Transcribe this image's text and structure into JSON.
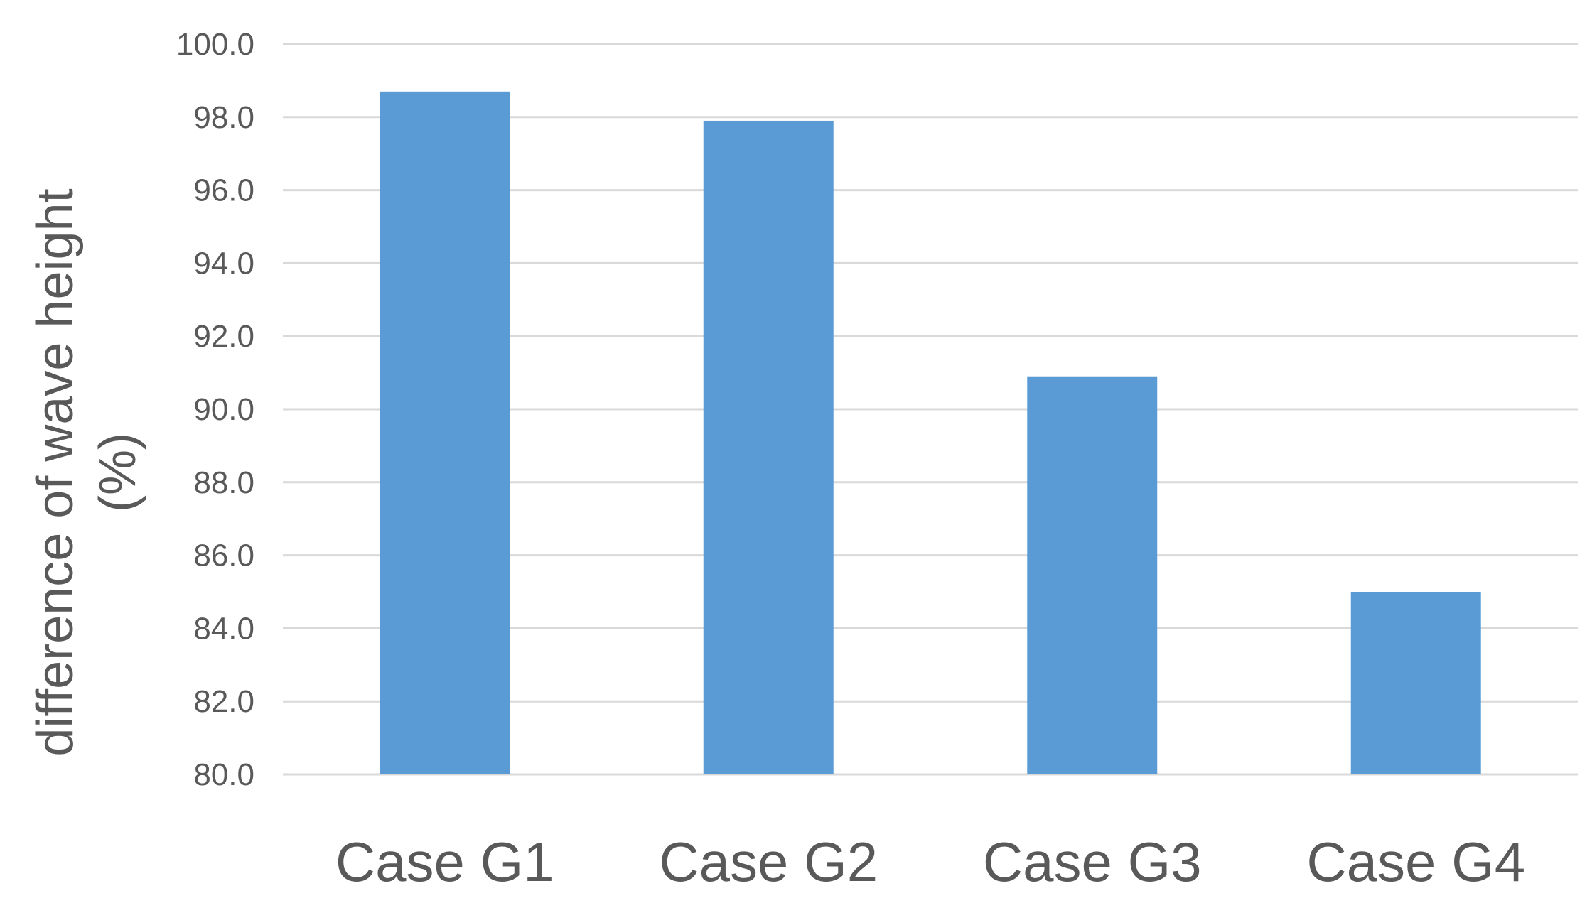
{
  "chart_data": {
    "type": "bar",
    "title": "",
    "xlabel": "",
    "ylabel": "difference of wave height (%)",
    "ylabel_lines": [
      "difference of wave height",
      "(%)"
    ],
    "categories": [
      "Case G1",
      "Case G2",
      "Case G3",
      "Case G4"
    ],
    "series": [
      {
        "values": [
          98.7,
          97.9,
          90.9,
          85.0
        ],
        "color": "#5b9bd5"
      }
    ],
    "ylim": [
      80.0,
      100.0
    ],
    "ytick_step": 2.0,
    "ytick_decimals": 1,
    "grid": true,
    "legend": "none"
  }
}
